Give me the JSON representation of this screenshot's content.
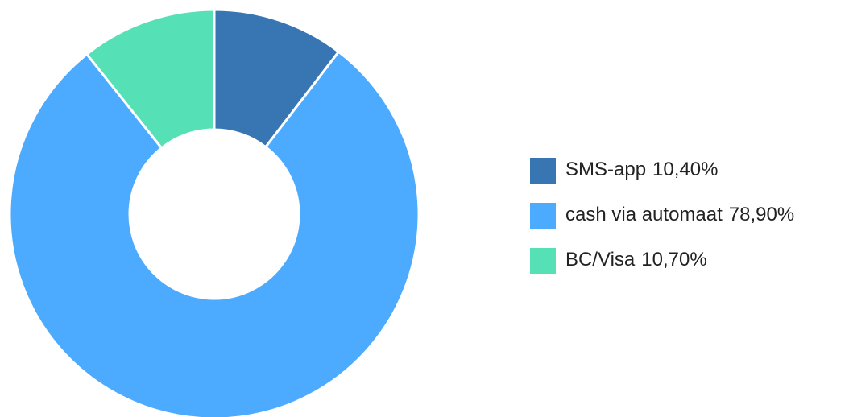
{
  "chart_data": {
    "type": "donut",
    "categories": [
      "SMS-app",
      "cash via automaat",
      "BC/Visa"
    ],
    "values": [
      10.4,
      78.9,
      10.7
    ],
    "value_labels": [
      "10,40%",
      "78,90%",
      "10,70%"
    ],
    "colors": [
      "#3776b3",
      "#4dabff",
      "#55e0b5"
    ],
    "legend": "right"
  }
}
